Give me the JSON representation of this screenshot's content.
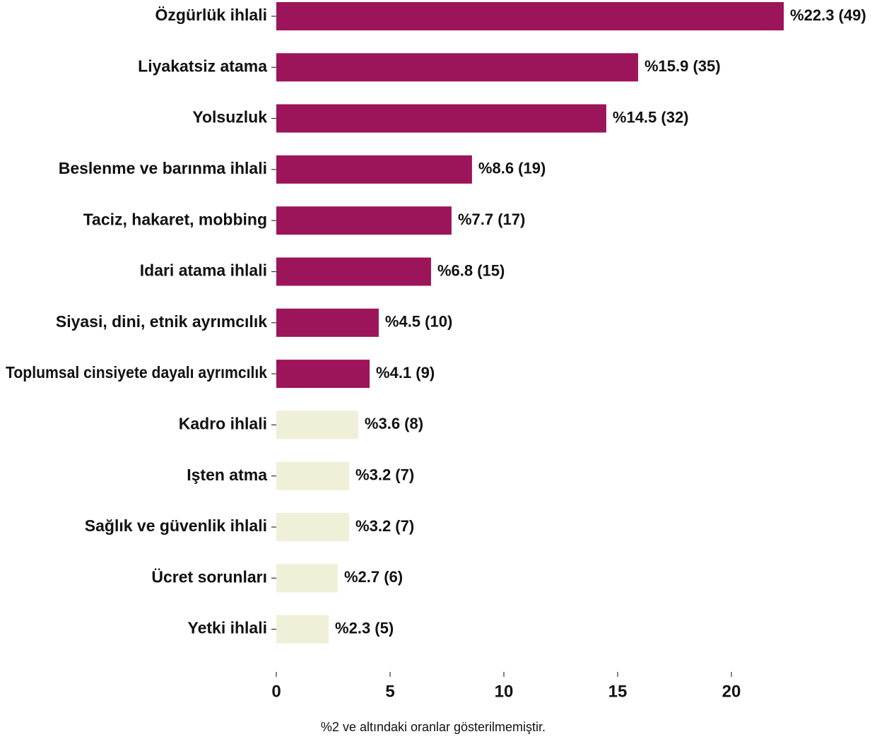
{
  "chart_data": {
    "type": "barh",
    "categories": [
      "Özgürlük ihlali",
      "Liyakatsiz atama",
      "Yolsuzluk",
      "Beslenme ve barınma ihlali",
      "Taciz, hakaret, mobbing",
      "Idari atama ihlali",
      "Siyasi, dini, etnik ayrımcılık",
      "Toplumsal cinsiyete dayalı ayrımcılık",
      "Kadro ihlali",
      "Işten atma",
      "Sağlık ve güvenlik ihlali",
      "Ücret sorunları",
      "Yetki ihlali"
    ],
    "values": [
      22.3,
      15.9,
      14.5,
      8.6,
      7.7,
      6.8,
      4.5,
      4.1,
      3.6,
      3.2,
      3.2,
      2.7,
      2.3
    ],
    "value_labels": [
      "%22.3 (49)",
      "%15.9 (35)",
      "%14.5 (32)",
      "%8.6 (19)",
      "%7.7 (17)",
      "%6.8 (15)",
      "%4.5 (10)",
      "%4.1 (9)",
      "%3.6 (8)",
      "%3.2 (7)",
      "%3.2 (7)",
      "%2.7 (6)",
      "%2.3 (5)"
    ],
    "colors": [
      "#9c1459",
      "#9c1459",
      "#9c1459",
      "#9c1459",
      "#9c1459",
      "#9c1459",
      "#9c1459",
      "#9c1459",
      "#f0efd8",
      "#f0efd8",
      "#f0efd8",
      "#f0efd8",
      "#f0efd8"
    ],
    "xlim": [
      0,
      25
    ],
    "xticks": [
      0,
      5,
      10,
      15,
      20
    ],
    "note": "%2 ve altındaki oranlar gösterilmemiştir."
  }
}
